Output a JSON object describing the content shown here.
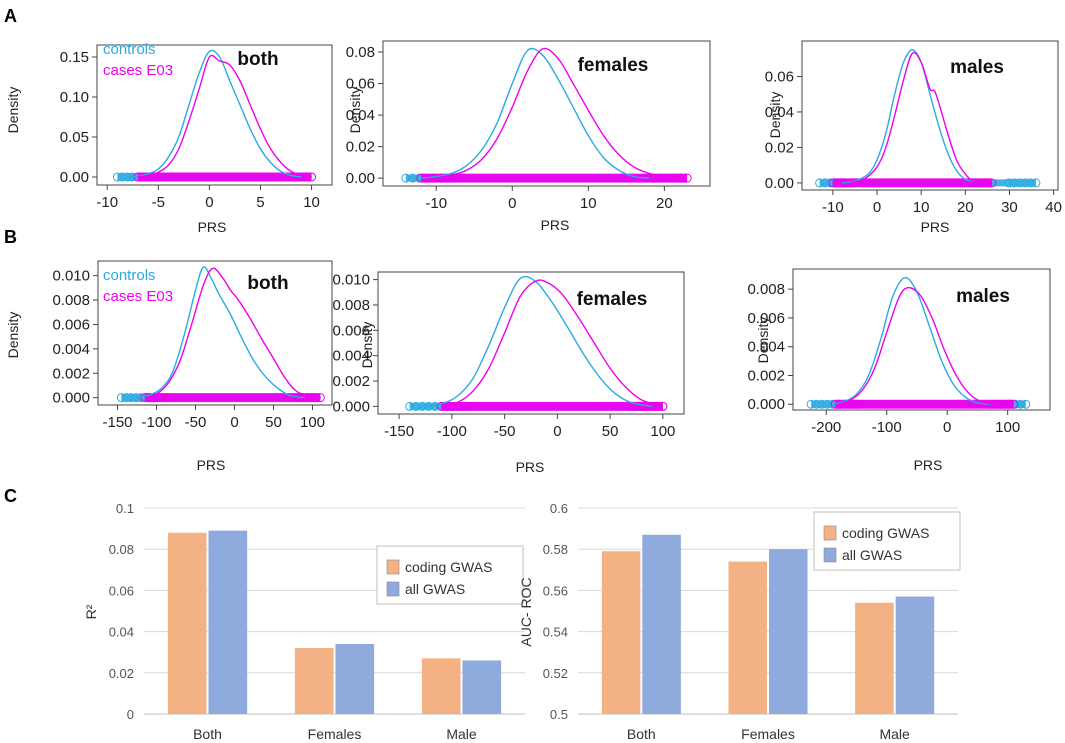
{
  "figure": {
    "panel_letters": [
      "A",
      "B",
      "C"
    ]
  },
  "colors": {
    "controls": "#29abe2",
    "cases": "#ee00ee",
    "coding": "#f4b183",
    "all": "#8faadc"
  },
  "chart_data": [
    {
      "id": "A-both",
      "type": "line",
      "title": "both",
      "xlabel": "PRS",
      "ylabel": "Density",
      "xlim": [
        -11,
        12
      ],
      "ylim": [
        -0.01,
        0.165
      ],
      "xticks": [
        -10,
        -5,
        0,
        5,
        10
      ],
      "xtick_labels": [
        "-10",
        "-5",
        "0",
        "5",
        "10"
      ],
      "yticks": [
        0,
        0.05,
        0.1,
        0.15
      ],
      "ytick_labels": [
        "0.00",
        "0.05",
        "0.10",
        "0.15"
      ],
      "legend": [
        "controls",
        "cases E03"
      ],
      "series": [
        {
          "name": "controls",
          "x": [
            -8,
            -7,
            -6,
            -5,
            -4,
            -3,
            -2,
            -1,
            0,
            1,
            2,
            3,
            4,
            5,
            6,
            7,
            8,
            9
          ],
          "y": [
            0,
            0.001,
            0.004,
            0.01,
            0.025,
            0.05,
            0.09,
            0.13,
            0.157,
            0.15,
            0.12,
            0.09,
            0.06,
            0.035,
            0.018,
            0.007,
            0.002,
            0
          ]
        },
        {
          "name": "cases E03",
          "x": [
            -7,
            -6,
            -5,
            -4,
            -3,
            -2,
            -1,
            0,
            1,
            2,
            3,
            4,
            5,
            6,
            7,
            8,
            9,
            10
          ],
          "y": [
            0,
            0.002,
            0.006,
            0.015,
            0.035,
            0.07,
            0.11,
            0.15,
            0.145,
            0.14,
            0.12,
            0.09,
            0.06,
            0.035,
            0.018,
            0.007,
            0.002,
            0
          ]
        }
      ],
      "rug_ranges": {
        "controls": [
          -9,
          10
        ],
        "cases E03": [
          -7,
          10
        ]
      }
    },
    {
      "id": "A-females",
      "type": "line",
      "title": "females",
      "xlabel": "PRS",
      "ylabel": "Density",
      "xlim": [
        -17,
        26
      ],
      "ylim": [
        -0.005,
        0.087
      ],
      "xticks": [
        -10,
        0,
        10,
        20
      ],
      "xtick_labels": [
        "-10",
        "0",
        "10",
        "20"
      ],
      "yticks": [
        0,
        0.02,
        0.04,
        0.06,
        0.08
      ],
      "ytick_labels": [
        "0.00",
        "0.02",
        "0.04",
        "0.06",
        "0.08"
      ],
      "series": [
        {
          "name": "controls",
          "x": [
            -12,
            -10,
            -8,
            -6,
            -4,
            -2,
            0,
            2,
            4,
            6,
            8,
            10,
            12,
            14,
            16,
            18
          ],
          "y": [
            0,
            0.001,
            0.003,
            0.008,
            0.018,
            0.035,
            0.06,
            0.081,
            0.078,
            0.063,
            0.045,
            0.027,
            0.013,
            0.005,
            0.001,
            0
          ]
        },
        {
          "name": "cases E03",
          "x": [
            -10,
            -8,
            -6,
            -4,
            -2,
            0,
            2,
            4,
            6,
            8,
            10,
            12,
            14,
            16,
            18,
            20,
            22
          ],
          "y": [
            0,
            0.002,
            0.005,
            0.012,
            0.025,
            0.045,
            0.068,
            0.082,
            0.076,
            0.06,
            0.043,
            0.027,
            0.015,
            0.007,
            0.003,
            0.001,
            0
          ]
        }
      ],
      "rug_ranges": {
        "controls": [
          -14,
          22
        ],
        "cases E03": [
          -12,
          23
        ]
      }
    },
    {
      "id": "A-males",
      "type": "line",
      "title": "males",
      "xlabel": "PRS",
      "ylabel": "Density",
      "xlim": [
        -17,
        41
      ],
      "ylim": [
        -0.004,
        0.08
      ],
      "xticks": [
        -10,
        0,
        10,
        20,
        30,
        40
      ],
      "xtick_labels": [
        "-10",
        "0",
        "10",
        "20",
        "30",
        "40"
      ],
      "yticks": [
        0,
        0.02,
        0.04,
        0.06
      ],
      "ytick_labels": [
        "0.00",
        "0.02",
        "0.04",
        "0.06"
      ],
      "series": [
        {
          "name": "controls",
          "x": [
            -8,
            -5,
            -2,
            0,
            2,
            4,
            6,
            8,
            10,
            12,
            14,
            16,
            18,
            20,
            22,
            25
          ],
          "y": [
            0,
            0.001,
            0.005,
            0.013,
            0.028,
            0.05,
            0.068,
            0.075,
            0.068,
            0.05,
            0.032,
            0.017,
            0.007,
            0.002,
            0.001,
            0
          ]
        },
        {
          "name": "cases E03",
          "x": [
            -6,
            -3,
            0,
            2,
            4,
            6,
            8,
            10,
            12,
            13,
            14,
            16,
            18,
            20,
            22,
            26
          ],
          "y": [
            0,
            0.002,
            0.009,
            0.02,
            0.038,
            0.058,
            0.073,
            0.068,
            0.053,
            0.052,
            0.045,
            0.028,
            0.013,
            0.005,
            0.001,
            0
          ]
        }
      ],
      "rug_ranges": {
        "controls": [
          -13,
          36
        ],
        "cases E03": [
          -10,
          26
        ]
      }
    },
    {
      "id": "B-both",
      "type": "line",
      "title": "both",
      "xlabel": "PRS",
      "ylabel": "Density",
      "xlim": [
        -175,
        125
      ],
      "ylim": [
        -0.0006,
        0.0112
      ],
      "xticks": [
        -150,
        -100,
        -50,
        0,
        50,
        100
      ],
      "xtick_labels": [
        "-150",
        "-100",
        "-50",
        "0",
        "50",
        "100"
      ],
      "yticks": [
        0,
        0.002,
        0.004,
        0.006,
        0.008,
        0.01
      ],
      "ytick_labels": [
        "0.000",
        "0.002",
        "0.004",
        "0.006",
        "0.008",
        "0.010"
      ],
      "legend": [
        "controls",
        "cases E03"
      ],
      "series": [
        {
          "name": "controls",
          "x": [
            -125,
            -110,
            -95,
            -80,
            -65,
            -50,
            -40,
            -30,
            -20,
            -5,
            10,
            25,
            40,
            55,
            70,
            90
          ],
          "y": [
            0,
            0.0002,
            0.0007,
            0.002,
            0.005,
            0.0088,
            0.0107,
            0.0098,
            0.0085,
            0.0068,
            0.0048,
            0.003,
            0.0017,
            0.0008,
            0.0002,
            0
          ]
        },
        {
          "name": "cases E03",
          "x": [
            -115,
            -100,
            -85,
            -70,
            -55,
            -40,
            -28,
            -15,
            -5,
            5,
            20,
            35,
            50,
            65,
            80,
            100
          ],
          "y": [
            0,
            0.0003,
            0.0012,
            0.003,
            0.006,
            0.0092,
            0.0106,
            0.0098,
            0.0088,
            0.008,
            0.0065,
            0.0048,
            0.0032,
            0.0016,
            0.0005,
            0
          ]
        }
      ],
      "rug_ranges": {
        "controls": [
          -145,
          105
        ],
        "cases E03": [
          -115,
          110
        ]
      }
    },
    {
      "id": "B-females",
      "type": "line",
      "title": "females",
      "xlabel": "PRS",
      "ylabel": "Density",
      "xlim": [
        -170,
        120
      ],
      "ylim": [
        -0.0006,
        0.0106
      ],
      "xticks": [
        -150,
        -100,
        -50,
        0,
        50,
        100
      ],
      "xtick_labels": [
        "-150",
        "-100",
        "-50",
        "0",
        "50",
        "100"
      ],
      "yticks": [
        0,
        0.002,
        0.004,
        0.006,
        0.008,
        0.01
      ],
      "ytick_labels": [
        "0.000",
        "0.002",
        "0.004",
        "0.006",
        "0.008",
        "0.010"
      ],
      "series": [
        {
          "name": "controls",
          "x": [
            -125,
            -110,
            -95,
            -80,
            -65,
            -50,
            -35,
            -20,
            -5,
            10,
            25,
            40,
            55,
            70,
            90
          ],
          "y": [
            0,
            0.0002,
            0.0008,
            0.0022,
            0.0048,
            0.0078,
            0.0101,
            0.0098,
            0.0082,
            0.0062,
            0.0041,
            0.0023,
            0.001,
            0.0003,
            0
          ]
        },
        {
          "name": "cases E03",
          "x": [
            -110,
            -95,
            -80,
            -65,
            -50,
            -35,
            -20,
            -8,
            5,
            20,
            35,
            50,
            65,
            80,
            100
          ],
          "y": [
            0,
            0.0003,
            0.0012,
            0.003,
            0.0058,
            0.0087,
            0.0099,
            0.0097,
            0.0088,
            0.007,
            0.005,
            0.003,
            0.0015,
            0.0005,
            0
          ]
        }
      ],
      "rug_ranges": {
        "controls": [
          -140,
          100
        ],
        "cases E03": [
          -110,
          100
        ]
      }
    },
    {
      "id": "B-males",
      "type": "line",
      "title": "males",
      "xlabel": "PRS",
      "ylabel": "Density",
      "xlim": [
        -255,
        170
      ],
      "ylim": [
        -0.0004,
        0.0094
      ],
      "xticks": [
        -200,
        -100,
        0,
        100
      ],
      "xtick_labels": [
        "-200",
        "-100",
        "0",
        "100"
      ],
      "yticks": [
        0,
        0.002,
        0.004,
        0.006,
        0.008
      ],
      "ytick_labels": [
        "0.000",
        "0.002",
        "0.004",
        "0.006",
        "0.008"
      ],
      "series": [
        {
          "name": "controls",
          "x": [
            -190,
            -170,
            -150,
            -130,
            -110,
            -90,
            -70,
            -50,
            -30,
            -10,
            10,
            30,
            50,
            80
          ],
          "y": [
            0,
            0.0002,
            0.0007,
            0.002,
            0.0045,
            0.0075,
            0.0088,
            0.0078,
            0.0055,
            0.0031,
            0.0014,
            0.0005,
            0.0001,
            0
          ]
        },
        {
          "name": "cases E03",
          "x": [
            -180,
            -160,
            -140,
            -120,
            -100,
            -80,
            -65,
            -45,
            -25,
            -5,
            15,
            35,
            55,
            80
          ],
          "y": [
            0,
            0.0003,
            0.001,
            0.0025,
            0.005,
            0.0074,
            0.0081,
            0.0076,
            0.006,
            0.0038,
            0.002,
            0.0008,
            0.0002,
            0
          ]
        }
      ],
      "rug_ranges": {
        "controls": [
          -225,
          130
        ],
        "cases E03": [
          -185,
          110
        ]
      }
    },
    {
      "id": "C-R2",
      "type": "bar",
      "ylabel": "R²",
      "ylim": [
        0,
        0.1
      ],
      "yticks": [
        0,
        0.02,
        0.04,
        0.06,
        0.08,
        0.1
      ],
      "ytick_labels": [
        "0",
        "0.02",
        "0.04",
        "0.06",
        "0.08",
        "0.1"
      ],
      "categories": [
        "Both",
        "Females",
        "Male"
      ],
      "series": [
        {
          "name": "coding GWAS",
          "values": [
            0.088,
            0.032,
            0.027
          ]
        },
        {
          "name": "all GWAS",
          "values": [
            0.089,
            0.034,
            0.026
          ]
        }
      ]
    },
    {
      "id": "C-AUC",
      "type": "bar",
      "ylabel": "AUC-  ROC",
      "ylim": [
        0.5,
        0.6
      ],
      "yticks": [
        0.5,
        0.52,
        0.54,
        0.56,
        0.58,
        0.6
      ],
      "ytick_labels": [
        "0.5",
        "0.52",
        "0.54",
        "0.56",
        "0.58",
        "0.6"
      ],
      "categories": [
        "Both",
        "Females",
        "Male"
      ],
      "series": [
        {
          "name": "coding GWAS",
          "values": [
            0.579,
            0.574,
            0.554
          ]
        },
        {
          "name": "all GWAS",
          "values": [
            0.587,
            0.58,
            0.557
          ]
        }
      ]
    }
  ]
}
